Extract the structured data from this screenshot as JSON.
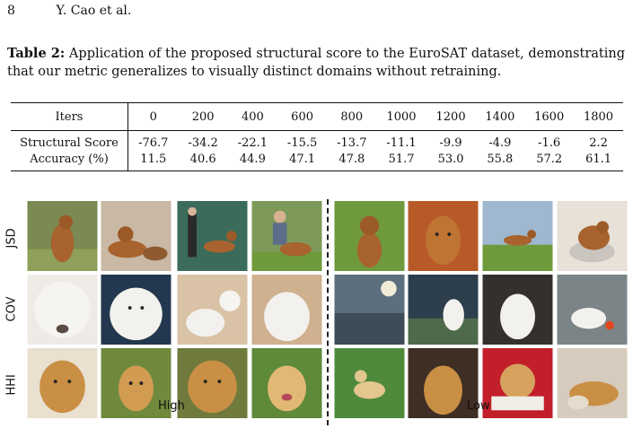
{
  "header": {
    "page_number": "8",
    "authors": "Y. Cao et al."
  },
  "caption": {
    "label": "Table 2:",
    "text": " Application of the proposed structural score to the EuroSAT dataset, demonstrating that our metric generalizes to visually distinct domains without retraining."
  },
  "table": {
    "header_label": "Iters",
    "iters": [
      "0",
      "200",
      "400",
      "600",
      "800",
      "1000",
      "1200",
      "1400",
      "1600",
      "1800"
    ],
    "rows": [
      {
        "label": "Structural Score",
        "values": [
          "-76.7",
          "-34.2",
          "-22.1",
          "-15.5",
          "-13.7",
          "-11.1",
          "-9.9",
          "-4.9",
          "-1.6",
          "2.2"
        ]
      },
      {
        "label": "Accuracy (%)",
        "values": [
          "11.5",
          "40.6",
          "44.9",
          "47.1",
          "47.8",
          "51.7",
          "53.0",
          "55.8",
          "57.2",
          "61.1"
        ]
      }
    ]
  },
  "figure": {
    "row_labels": [
      "JSD",
      "COV",
      "HHI"
    ],
    "group_labels": {
      "high": "High",
      "low": "Low"
    },
    "colors": {
      "rhodesian": "#a8632e",
      "samoyed": "#f3f1ee",
      "golden": "#c98f45",
      "grass": "#6f9a3c",
      "water": "#5c6f7e"
    }
  }
}
